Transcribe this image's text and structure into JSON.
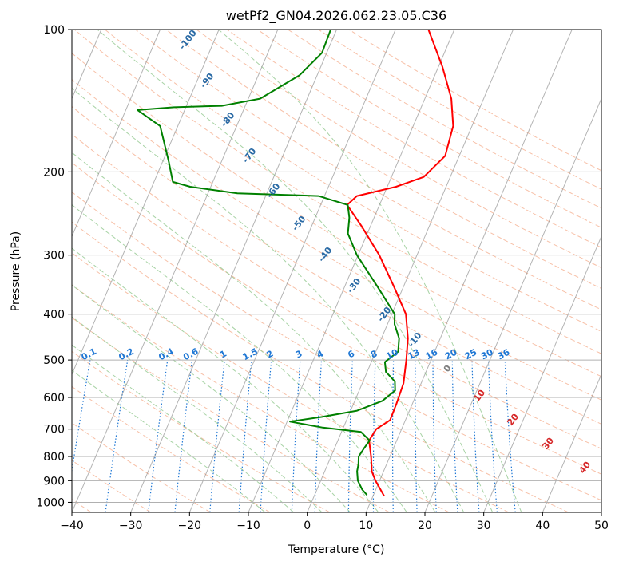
{
  "chart_data": {
    "type": "line",
    "subtype": "skew-t log-p diagram",
    "title": "wetPf2_GN04.2026.062.23.05.C36",
    "xlabel": "Temperature (°C)",
    "ylabel": "Pressure (hPa)",
    "xlim": [
      -40,
      50
    ],
    "ylim": [
      1050,
      100
    ],
    "y_scale": "log",
    "grid": true,
    "x_ticks": [
      "−40",
      "−30",
      "−20",
      "−10",
      "0",
      "10",
      "20",
      "30",
      "40",
      "50"
    ],
    "y_ticks": [
      "100",
      "200",
      "300",
      "400",
      "500",
      "600",
      "700",
      "800",
      "900",
      "1000"
    ],
    "y_tick_values": [
      100,
      200,
      300,
      400,
      500,
      600,
      700,
      800,
      900,
      1000
    ],
    "series": [
      {
        "role": "temperature",
        "color": "#ff0000",
        "points": [
          {
            "p": 970,
            "t": 11.9
          },
          {
            "p": 900,
            "t": 9.3
          },
          {
            "p": 860,
            "t": 8.0
          },
          {
            "p": 800,
            "t": 6.8
          },
          {
            "p": 740,
            "t": 5.3
          },
          {
            "p": 700,
            "t": 5.7
          },
          {
            "p": 670,
            "t": 7.4
          },
          {
            "p": 620,
            "t": 7.3
          },
          {
            "p": 560,
            "t": 7.0
          },
          {
            "p": 500,
            "t": 5.8
          },
          {
            "p": 450,
            "t": 4.5
          },
          {
            "p": 400,
            "t": 2.4
          },
          {
            "p": 350,
            "t": -1.6
          },
          {
            "p": 300,
            "t": -6.4
          },
          {
            "p": 260,
            "t": -11.6
          },
          {
            "p": 235,
            "t": -15.5
          },
          {
            "p": 225,
            "t": -14.5
          },
          {
            "p": 215,
            "t": -8.5
          },
          {
            "p": 205,
            "t": -4.5
          },
          {
            "p": 185,
            "t": -2.4
          },
          {
            "p": 160,
            "t": -3.2
          },
          {
            "p": 140,
            "t": -5.5
          },
          {
            "p": 120,
            "t": -9.3
          },
          {
            "p": 100,
            "t": -14.4
          }
        ]
      },
      {
        "role": "dewpoint",
        "color": "#008000",
        "points": [
          {
            "p": 965,
            "t": 8.9
          },
          {
            "p": 940,
            "t": 7.7
          },
          {
            "p": 900,
            "t": 6.3
          },
          {
            "p": 860,
            "t": 5.5
          },
          {
            "p": 830,
            "t": 5.2
          },
          {
            "p": 800,
            "t": 4.7
          },
          {
            "p": 770,
            "t": 5.0
          },
          {
            "p": 740,
            "t": 5.4
          },
          {
            "p": 710,
            "t": 3.3
          },
          {
            "p": 695,
            "t": -3.5
          },
          {
            "p": 675,
            "t": -9.5
          },
          {
            "p": 660,
            "t": -4.5
          },
          {
            "p": 640,
            "t": 1.1
          },
          {
            "p": 610,
            "t": 4.7
          },
          {
            "p": 580,
            "t": 6.1
          },
          {
            "p": 555,
            "t": 5.4
          },
          {
            "p": 530,
            "t": 3.2
          },
          {
            "p": 505,
            "t": 2.3
          },
          {
            "p": 480,
            "t": 3.8
          },
          {
            "p": 450,
            "t": 3.0
          },
          {
            "p": 420,
            "t": 1.2
          },
          {
            "p": 400,
            "t": 0.5
          },
          {
            "p": 350,
            "t": -4.4
          },
          {
            "p": 300,
            "t": -10.2
          },
          {
            "p": 270,
            "t": -13.3
          },
          {
            "p": 250,
            "t": -14.2
          },
          {
            "p": 235,
            "t": -15.4
          },
          {
            "p": 225,
            "t": -21.0
          },
          {
            "p": 222,
            "t": -35.0
          },
          {
            "p": 215,
            "t": -43.5
          },
          {
            "p": 210,
            "t": -46.8
          },
          {
            "p": 190,
            "t": -49.0
          },
          {
            "p": 160,
            "t": -53.0
          },
          {
            "p": 148,
            "t": -58.0
          },
          {
            "p": 146,
            "t": -52.0
          },
          {
            "p": 145,
            "t": -44.0
          },
          {
            "p": 140,
            "t": -38.0
          },
          {
            "p": 125,
            "t": -33.0
          },
          {
            "p": 112,
            "t": -30.8
          },
          {
            "p": 100,
            "t": -31.0
          }
        ]
      }
    ],
    "isotherms_step": 10,
    "dry_adiabats": [
      -100,
      -90,
      -80,
      -70,
      -60,
      -50,
      -40,
      -30,
      -20,
      -10,
      0,
      10,
      20,
      30,
      40,
      50,
      60,
      70,
      80,
      90,
      100,
      110,
      120,
      130,
      140,
      150,
      160,
      170,
      180,
      190,
      200
    ],
    "moist_adiabats": [
      -10,
      -5,
      0,
      5,
      10,
      15,
      20,
      25,
      30,
      35
    ],
    "mixing_ratio_labels": [
      "0.1",
      "0.2",
      "0.4",
      "0.6",
      "1",
      "1.5",
      "2",
      "3",
      "4",
      "6",
      "8",
      "10",
      "13",
      "16",
      "20",
      "25",
      "30",
      "36"
    ],
    "dry_adiabat_labels": [
      "-100",
      "-90",
      "-80",
      "-70",
      "-60",
      "-50",
      "-40",
      "-30",
      "-20",
      "-10",
      "0",
      "10",
      "20",
      "30",
      "40"
    ],
    "colors": {
      "temperature": "#ff0000",
      "dewpoint": "#008000",
      "dry_adiabat": "#f4a582",
      "moist_adiabat": "#92c88f",
      "mixing_ratio": "#1f77d4",
      "isotherm": "#8c8c8c",
      "dry_label_cold": "#2a6aa5",
      "dry_label_warm": "#d62728",
      "zero_label": "#808080",
      "frame": "#000000"
    }
  }
}
